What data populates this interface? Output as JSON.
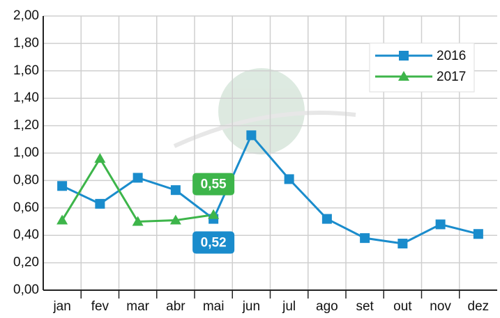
{
  "chart_data": {
    "type": "line",
    "categories": [
      "jan",
      "fev",
      "mar",
      "abr",
      "mai",
      "jun",
      "jul",
      "ago",
      "set",
      "out",
      "nov",
      "dez"
    ],
    "series": [
      {
        "name": "2016",
        "color": "#1a8ccc",
        "marker": "square",
        "values": [
          0.76,
          0.63,
          0.82,
          0.73,
          0.52,
          1.13,
          0.81,
          0.52,
          0.38,
          0.34,
          0.48,
          0.41
        ],
        "value_labels": [
          null,
          null,
          null,
          null,
          "0,52",
          null,
          null,
          null,
          null,
          null,
          null,
          null
        ]
      },
      {
        "name": "2017",
        "color": "#3db54a",
        "marker": "triangle",
        "values": [
          0.51,
          0.96,
          0.5,
          0.51,
          0.55,
          null,
          null,
          null,
          null,
          null,
          null,
          null
        ],
        "value_labels": [
          null,
          null,
          null,
          null,
          "0,55",
          null,
          null,
          null,
          null,
          null,
          null,
          null
        ]
      }
    ],
    "ylim": [
      0,
      2
    ],
    "yticks": [
      {
        "value": 0,
        "label": "0,00"
      },
      {
        "value": 0.2,
        "label": "0,20"
      },
      {
        "value": 0.4,
        "label": "0,40"
      },
      {
        "value": 0.6,
        "label": "0,60"
      },
      {
        "value": 0.8,
        "label": "0,80"
      },
      {
        "value": 1,
        "label": "1,00"
      },
      {
        "value": 1.2,
        "label": "1,20"
      },
      {
        "value": 1.4,
        "label": "1,40"
      },
      {
        "value": 1.6,
        "label": "1,60"
      },
      {
        "value": 1.8,
        "label": "1,80"
      },
      {
        "value": 2,
        "label": "2,00"
      }
    ],
    "grid": true,
    "legend": "top-right"
  }
}
